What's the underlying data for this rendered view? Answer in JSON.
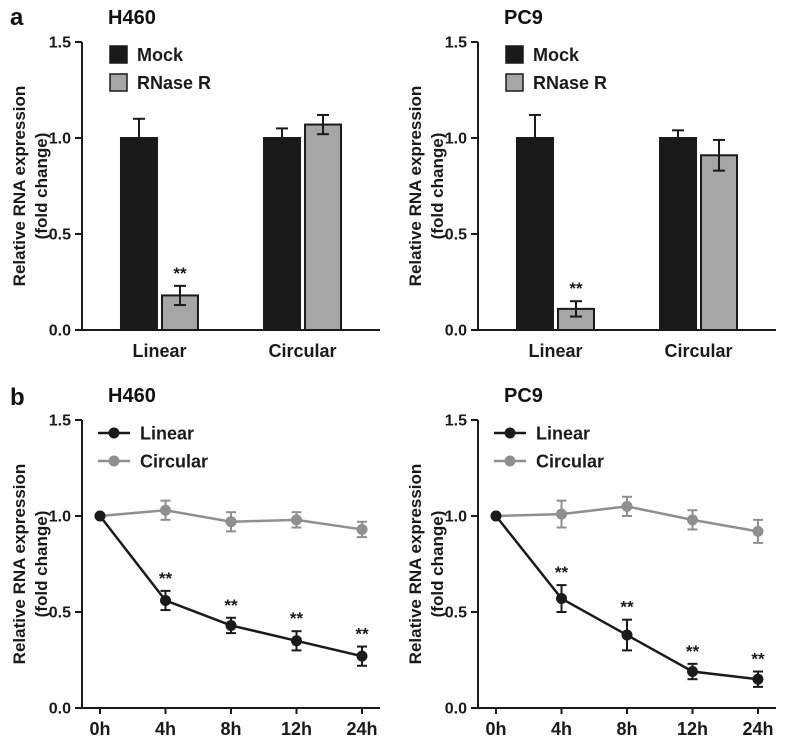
{
  "figure": {
    "background": "#ffffff"
  },
  "colors": {
    "axis": "#1a1a1a",
    "black_series": "#1a1a1a",
    "gray_series": "#8f8f8f",
    "gray_bar_fill": "#a6a6a6"
  },
  "panels": [
    {
      "label": "a"
    },
    {
      "label": "b"
    }
  ],
  "chart_data": [
    {
      "type": "bar",
      "panel": "a",
      "title": "H460",
      "ylabel": "Relative RNA expression (fold change)",
      "ylabel_lines": [
        "Relative RNA expression",
        "(fold change)"
      ],
      "categories": [
        "Linear",
        "Circular"
      ],
      "series": [
        {
          "name": "Mock",
          "color": "#1a1a1a",
          "values": [
            1.0,
            1.0
          ],
          "errors": [
            0.1,
            0.05
          ],
          "sig": [
            "",
            ""
          ]
        },
        {
          "name": "RNase R",
          "color": "#a6a6a6",
          "values": [
            0.18,
            1.07
          ],
          "errors": [
            0.05,
            0.05
          ],
          "sig": [
            "**",
            ""
          ]
        }
      ],
      "ylim": [
        0,
        1.5
      ],
      "yticks": [
        0.0,
        0.5,
        1.0,
        1.5
      ],
      "ytick_labels": [
        "0.0",
        "0.5",
        "1.0",
        "1.5"
      ],
      "grid": false,
      "legend_position": "top-left"
    },
    {
      "type": "bar",
      "panel": "a",
      "title": "PC9",
      "ylabel": "Relative RNA expression (fold change)",
      "ylabel_lines": [
        "Relative RNA expression",
        "(fold change)"
      ],
      "categories": [
        "Linear",
        "Circular"
      ],
      "series": [
        {
          "name": "Mock",
          "color": "#1a1a1a",
          "values": [
            1.0,
            1.0
          ],
          "errors": [
            0.12,
            0.04
          ],
          "sig": [
            "",
            ""
          ]
        },
        {
          "name": "RNase R",
          "color": "#a6a6a6",
          "values": [
            0.11,
            0.91
          ],
          "errors": [
            0.04,
            0.08
          ],
          "sig": [
            "**",
            ""
          ]
        }
      ],
      "ylim": [
        0,
        1.5
      ],
      "yticks": [
        0.0,
        0.5,
        1.0,
        1.5
      ],
      "ytick_labels": [
        "0.0",
        "0.5",
        "1.0",
        "1.5"
      ],
      "grid": false,
      "legend_position": "top-left"
    },
    {
      "type": "line",
      "panel": "b",
      "title": "H460",
      "ylabel": "Relative RNA expression (fold change)",
      "ylabel_lines": [
        "Relative RNA expression",
        "(fold change)"
      ],
      "categories": [
        "0h",
        "4h",
        "8h",
        "12h",
        "24h"
      ],
      "series": [
        {
          "name": "Linear",
          "color": "#1a1a1a",
          "values": [
            1.0,
            0.56,
            0.43,
            0.35,
            0.27
          ],
          "errors": [
            0,
            0.05,
            0.04,
            0.05,
            0.05
          ],
          "sig": [
            "",
            "**",
            "**",
            "**",
            "**"
          ]
        },
        {
          "name": "Circular",
          "color": "#8f8f8f",
          "values": [
            1.0,
            1.03,
            0.97,
            0.98,
            0.93
          ],
          "errors": [
            0,
            0.05,
            0.05,
            0.04,
            0.04
          ],
          "sig": [
            "",
            "",
            "",
            "",
            ""
          ]
        }
      ],
      "ylim": [
        0,
        1.5
      ],
      "yticks": [
        0.0,
        0.5,
        1.0,
        1.5
      ],
      "ytick_labels": [
        "0.0",
        "0.5",
        "1.0",
        "1.5"
      ],
      "grid": false,
      "legend_position": "top-left"
    },
    {
      "type": "line",
      "panel": "b",
      "title": "PC9",
      "ylabel": "Relative RNA expression (fold change)",
      "ylabel_lines": [
        "Relative RNA expression",
        "(fold change)"
      ],
      "categories": [
        "0h",
        "4h",
        "8h",
        "12h",
        "24h"
      ],
      "series": [
        {
          "name": "Linear",
          "color": "#1a1a1a",
          "values": [
            1.0,
            0.57,
            0.38,
            0.19,
            0.15
          ],
          "errors": [
            0,
            0.07,
            0.08,
            0.04,
            0.04
          ],
          "sig": [
            "",
            "**",
            "**",
            "**",
            "**"
          ]
        },
        {
          "name": "Circular",
          "color": "#8f8f8f",
          "values": [
            1.0,
            1.01,
            1.05,
            0.98,
            0.92
          ],
          "errors": [
            0,
            0.07,
            0.05,
            0.05,
            0.06
          ],
          "sig": [
            "",
            "",
            "",
            "",
            ""
          ]
        }
      ],
      "ylim": [
        0,
        1.5
      ],
      "yticks": [
        0.0,
        0.5,
        1.0,
        1.5
      ],
      "ytick_labels": [
        "0.0",
        "0.5",
        "1.0",
        "1.5"
      ],
      "grid": false,
      "legend_position": "top-left"
    }
  ]
}
